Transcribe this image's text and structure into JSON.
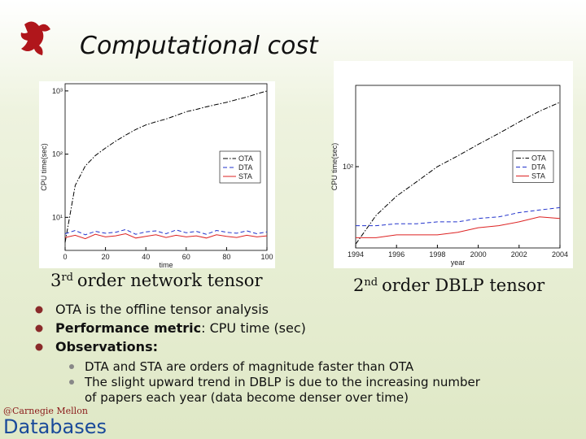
{
  "slide": {
    "title": "Computational cost",
    "caption_left": {
      "number": "3",
      "suffix": "rd",
      "text": "order network tensor"
    },
    "caption_right": {
      "number": "2",
      "suffix": "nd",
      "text": "order DBLP tensor"
    },
    "bullets": [
      {
        "text": "OTA is the offline tensor analysis"
      },
      {
        "bold": "Performance metric",
        "text": ": CPU time (sec)"
      },
      {
        "bold": "Observations:"
      }
    ],
    "sub_bullets": [
      "DTA and STA are orders of magnitude faster than OTA",
      "The slight upward trend in DBLP is due to the increasing number",
      "of papers each year (data become denser over time)"
    ],
    "footer": {
      "org": "@Carnegie Mellon",
      "name": "Databases"
    }
  },
  "chart_data": [
    {
      "type": "line",
      "xlabel": "time",
      "ylabel": "CPU time(sec)",
      "yscale": "log",
      "legend": "center right",
      "x": [
        0,
        5,
        10,
        15,
        20,
        25,
        30,
        35,
        40,
        45,
        50,
        55,
        60,
        65,
        70,
        75,
        80,
        85,
        90,
        95,
        100
      ],
      "xlim": [
        0,
        100
      ],
      "xticks": [
        0,
        20,
        40,
        60,
        80,
        100
      ],
      "ylim": [
        3,
        1300
      ],
      "yticks": [
        {
          "value": 10,
          "label": "10¹"
        },
        {
          "value": 100,
          "label": "10²"
        },
        {
          "value": 1000,
          "label": "10³"
        }
      ],
      "series": [
        {
          "name": "OTA",
          "color": "#000000",
          "dash": "dashdot",
          "values": [
            4,
            32,
            65,
            95,
            125,
            160,
            200,
            245,
            290,
            325,
            360,
            410,
            470,
            510,
            560,
            610,
            660,
            730,
            800,
            900,
            1000
          ]
        },
        {
          "name": "DTA",
          "color": "#2233cc",
          "dash": "dashed",
          "values": [
            5.5,
            6.2,
            5.3,
            6,
            5.6,
            5.8,
            6.4,
            5.4,
            5.9,
            6.1,
            5.5,
            6.3,
            5.7,
            6,
            5.4,
            6.2,
            5.8,
            5.6,
            6.1,
            5.5,
            5.9
          ]
        },
        {
          "name": "STA",
          "color": "#dd2222",
          "dash": "solid",
          "values": [
            4.8,
            5.2,
            4.6,
            5.4,
            4.9,
            5.1,
            5.5,
            4.7,
            5,
            5.3,
            4.8,
            5.2,
            4.9,
            5.1,
            4.7,
            5.3,
            5,
            4.8,
            5.2,
            4.9,
            5.1
          ]
        }
      ]
    },
    {
      "type": "line",
      "xlabel": "year",
      "ylabel": "CPU time(sec)",
      "yscale": "log",
      "legend": "center right",
      "x": [
        1994,
        1995,
        1996,
        1997,
        1998,
        1999,
        2000,
        2001,
        2002,
        2003,
        2004
      ],
      "xlim": [
        1994,
        2004
      ],
      "xticks": [
        1994,
        1996,
        1998,
        2000,
        2002,
        2004
      ],
      "ylim": [
        8,
        1250
      ],
      "yticks": [
        {
          "value": 100,
          "label": "10²"
        }
      ],
      "series": [
        {
          "name": "OTA",
          "color": "#000000",
          "dash": "dashdot",
          "values": [
            9,
            22,
            40,
            63,
            100,
            140,
            200,
            280,
            400,
            560,
            740
          ]
        },
        {
          "name": "DTA",
          "color": "#2233cc",
          "dash": "dashed",
          "values": [
            16,
            16,
            17,
            17,
            18,
            18,
            20,
            21,
            24,
            26,
            28
          ]
        },
        {
          "name": "STA",
          "color": "#dd2222",
          "dash": "solid",
          "values": [
            11,
            11,
            12,
            12,
            12,
            13,
            15,
            16,
            18,
            21,
            20
          ]
        }
      ]
    }
  ]
}
